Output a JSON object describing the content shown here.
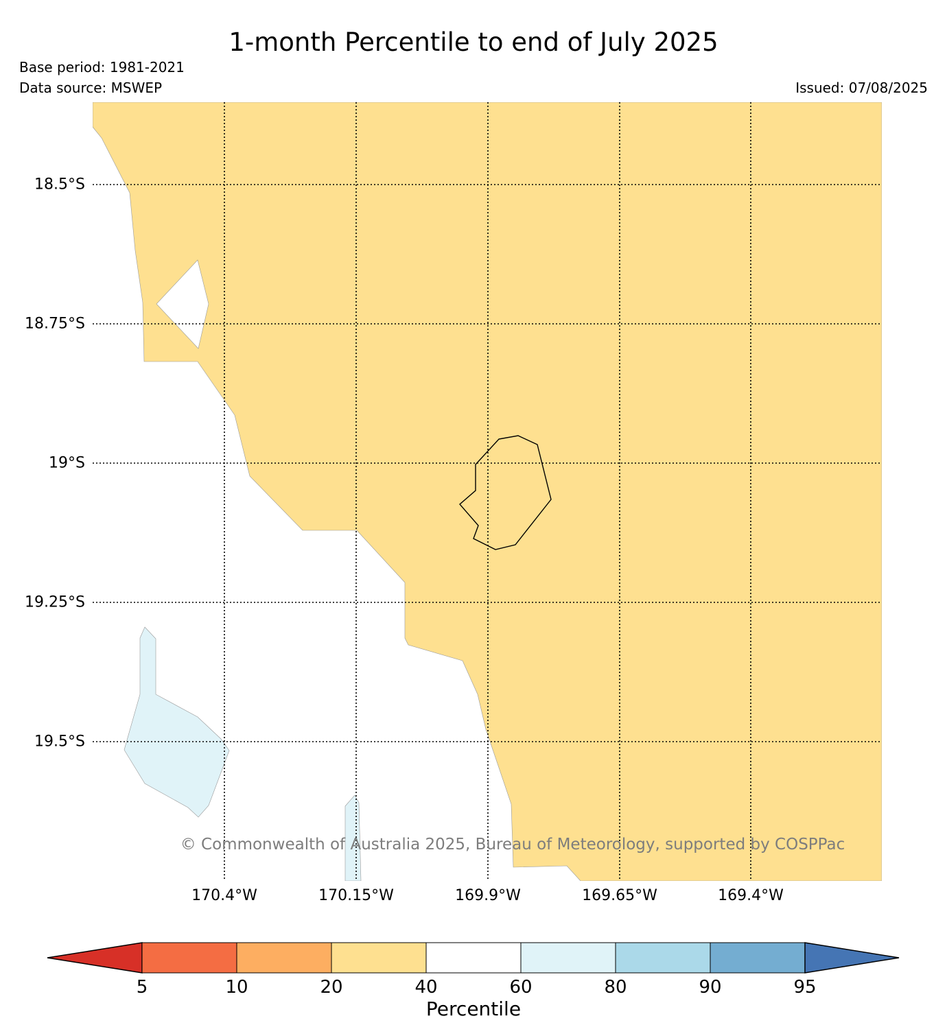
{
  "header": {
    "title": "1-month Percentile to end of July 2025",
    "base_period": "Base period: 1981-2021",
    "data_source": "Data source: MSWEP",
    "issued": "Issued: 07/08/2025"
  },
  "map": {
    "lat_labels": [
      "18.5°S",
      "18.75°S",
      "19°S",
      "19.25°S",
      "19.5°S"
    ],
    "lon_labels": [
      "170.4°W",
      "170.15°W",
      "169.9°W",
      "169.65°W",
      "169.4°W"
    ],
    "copyright": "© Commonwealth of Australia 2025, Bureau of Meteorology, supported by COSPPac",
    "colors": {
      "band_20_40": "#fee090",
      "band_60_80": "#e0f3f8",
      "background": "#ffffff"
    }
  },
  "colorbar": {
    "label": "Percentile",
    "ticks": [
      "5",
      "10",
      "20",
      "40",
      "60",
      "80",
      "90",
      "95"
    ],
    "colors": [
      "#d73027",
      "#f46d43",
      "#fdae61",
      "#fee090",
      "#ffffff",
      "#e0f3f8",
      "#abd9e9",
      "#74add1",
      "#4575b4"
    ]
  }
}
